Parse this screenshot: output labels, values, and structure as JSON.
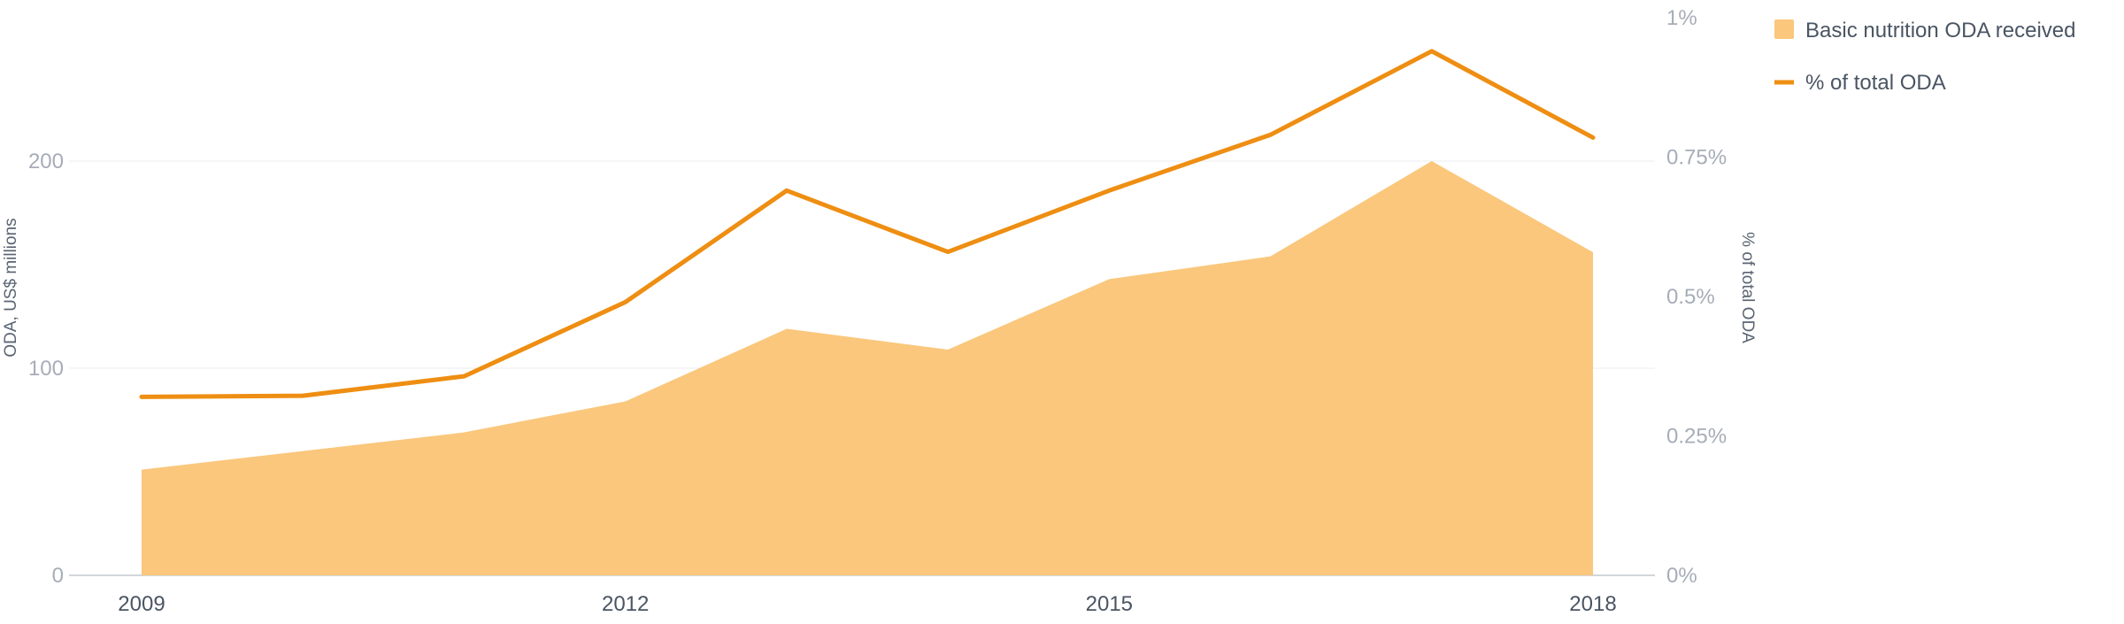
{
  "chart_data": {
    "type": "area",
    "x": [
      2009,
      2010,
      2011,
      2012,
      2013,
      2014,
      2015,
      2016,
      2017,
      2018
    ],
    "x_tick_labels": [
      "2009",
      "2012",
      "2015",
      "2018"
    ],
    "x_tick_values": [
      2009,
      2012,
      2015,
      2018
    ],
    "series": [
      {
        "name": "Basic nutrition ODA received",
        "type": "area",
        "axis": "left",
        "color": "#fac77c",
        "values": [
          51,
          60,
          69,
          84,
          119,
          109,
          143,
          154,
          200,
          156
        ]
      },
      {
        "name": "% of total ODA",
        "type": "line",
        "axis": "right",
        "color": "#ee8e12",
        "values": [
          0.32,
          0.322,
          0.357,
          0.49,
          0.69,
          0.58,
          0.69,
          0.79,
          0.94,
          0.785
        ]
      }
    ],
    "y_left": {
      "label": "ODA, US$ millions",
      "range": [
        0,
        200
      ],
      "ticks": [
        0,
        100,
        200
      ],
      "tick_labels": [
        "0",
        "100",
        "200"
      ]
    },
    "y_right": {
      "label": "% of total ODA",
      "range": [
        0,
        1
      ],
      "ticks": [
        0,
        0.25,
        0.5,
        0.75,
        1
      ],
      "tick_labels": [
        "0%",
        "0.25%",
        "0.5%",
        "0.75%",
        "1%"
      ]
    },
    "grid": true,
    "legend_position": "top-right"
  }
}
